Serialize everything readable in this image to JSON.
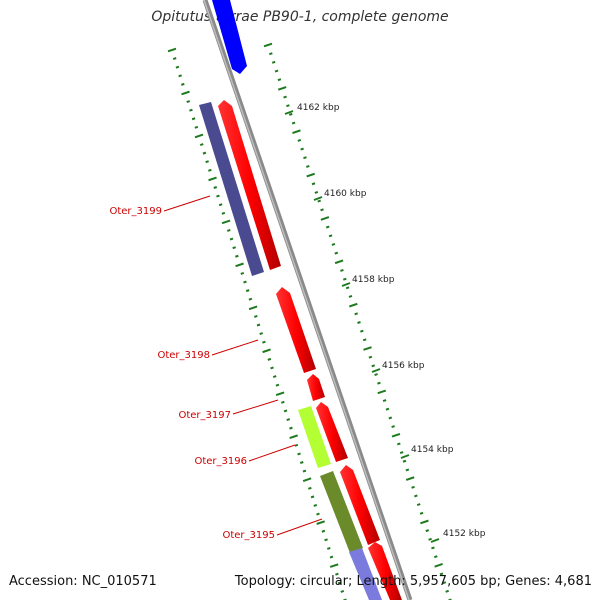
{
  "title": "Opitutus terrae PB90-1, complete genome",
  "footer": {
    "accession": "Accession: NC_010571",
    "topology": "Topology: circular; Length: 5,957,605 bp; Genes: 4,681"
  },
  "scale_labels": [
    "4162 kbp",
    "4160 kbp",
    "4158 kbp",
    "4156 kbp",
    "4154 kbp",
    "4152 kbp"
  ],
  "gene_labels": [
    "Oter_3199",
    "Oter_3198",
    "Oter_3197",
    "Oter_3196",
    "Oter_3195"
  ],
  "colors": {
    "backbone": "#8a8a8a",
    "tick": "#1e7a1e",
    "forward_gene": "#ff0000",
    "blue_gene": "#0000ff",
    "navy_gene": "#4a4a90",
    "lime_gene": "#b3ff33",
    "olive_gene": "#6b8a2a",
    "lavender_gene": "#7b7bdd",
    "label": "#cc0000"
  }
}
